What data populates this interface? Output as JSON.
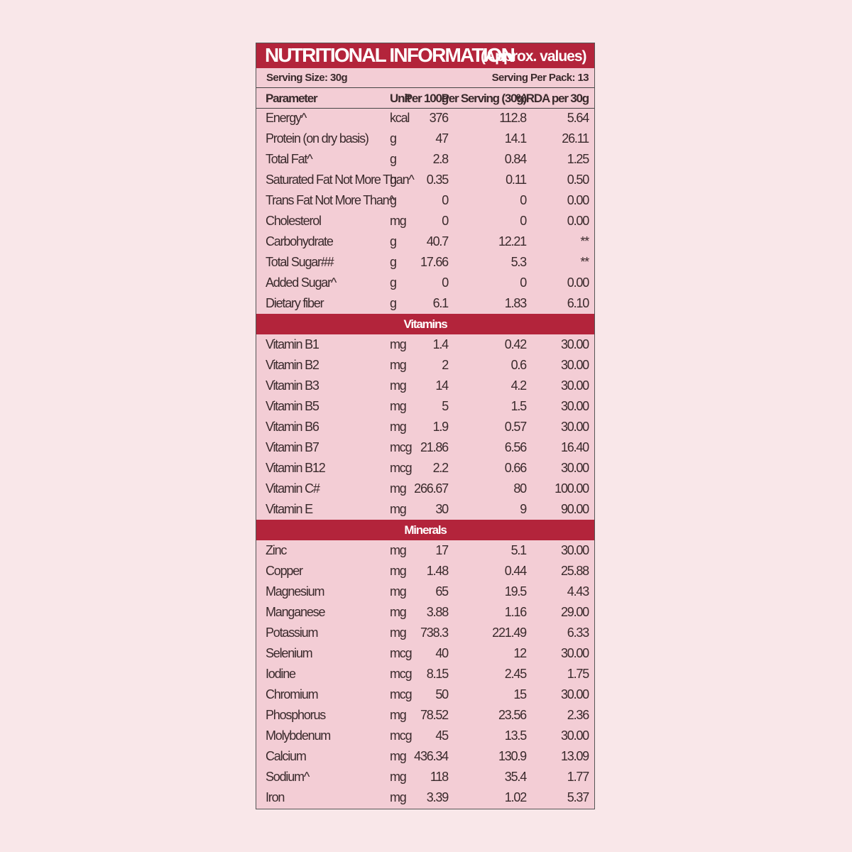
{
  "header": {
    "title": "NUTRITIONAL INFORMATION",
    "subtitle": "(Approx. values)",
    "serving_size": "Serving Size: 30g",
    "servings_per_pack": "Serving Per Pack: 13"
  },
  "table": {
    "columns": [
      "Parameter",
      "Unit",
      "Per 100g",
      "Per Serving (30g)",
      "%RDA per 30g"
    ],
    "nutrients": {
      "rows": [
        [
          "Energy^",
          "kcal",
          "376",
          "112.8",
          "5.64"
        ],
        [
          "Protein (on dry basis)",
          "g",
          "47",
          "14.1",
          "26.11"
        ],
        [
          "Total Fat^",
          "g",
          "2.8",
          "0.84",
          "1.25"
        ],
        [
          "Saturated Fat Not More Than^",
          "g",
          "0.35",
          "0.11",
          "0.50"
        ],
        [
          "Trans Fat Not More Than^",
          "g",
          "0",
          "0",
          "0.00"
        ],
        [
          "Cholesterol",
          "mg",
          "0",
          "0",
          "0.00"
        ],
        [
          "Carbohydrate",
          "g",
          "40.7",
          "12.21",
          "**"
        ],
        [
          "Total Sugar##",
          "g",
          "17.66",
          "5.3",
          "**"
        ],
        [
          "Added Sugar^",
          "g",
          "0",
          "0",
          "0.00"
        ],
        [
          "Dietary fiber",
          "g",
          "6.1",
          "1.83",
          "6.10"
        ]
      ]
    },
    "vitamins": {
      "title": "Vitamins",
      "rows": [
        [
          "Vitamin B1",
          "mg",
          "1.4",
          "0.42",
          "30.00"
        ],
        [
          "Vitamin B2",
          "mg",
          "2",
          "0.6",
          "30.00"
        ],
        [
          "Vitamin B3",
          "mg",
          "14",
          "4.2",
          "30.00"
        ],
        [
          "Vitamin B5",
          "mg",
          "5",
          "1.5",
          "30.00"
        ],
        [
          "Vitamin B6",
          "mg",
          "1.9",
          "0.57",
          "30.00"
        ],
        [
          "Vitamin B7",
          "mcg",
          "21.86",
          "6.56",
          "16.40"
        ],
        [
          "Vitamin B12",
          "mcg",
          "2.2",
          "0.66",
          "30.00"
        ],
        [
          "Vitamin C#",
          "mg",
          "266.67",
          "80",
          "100.00"
        ],
        [
          "Vitamin E",
          "mg",
          "30",
          "9",
          "90.00"
        ]
      ]
    },
    "minerals": {
      "title": "Minerals",
      "rows": [
        [
          "Zinc",
          "mg",
          "17",
          "5.1",
          "30.00"
        ],
        [
          "Copper",
          "mg",
          "1.48",
          "0.44",
          "25.88"
        ],
        [
          "Magnesium",
          "mg",
          "65",
          "19.5",
          "4.43"
        ],
        [
          "Manganese",
          "mg",
          "3.88",
          "1.16",
          "29.00"
        ],
        [
          "Potassium",
          "mg",
          "738.3",
          "221.49",
          "6.33"
        ],
        [
          "Selenium",
          "mcg",
          "40",
          "12",
          "30.00"
        ],
        [
          "Iodine",
          "mcg",
          "8.15",
          "2.45",
          "1.75"
        ],
        [
          "Chromium",
          "mcg",
          "50",
          "15",
          "30.00"
        ],
        [
          "Phosphorus",
          "mg",
          "78.52",
          "23.56",
          "2.36"
        ],
        [
          "Molybdenum",
          "mcg",
          "45",
          "13.5",
          "30.00"
        ],
        [
          "Calcium",
          "mg",
          "436.34",
          "130.9",
          "13.09"
        ],
        [
          "Sodium^",
          "mg",
          "118",
          "35.4",
          "1.77"
        ],
        [
          "Iron",
          "mg",
          "3.39",
          "1.02",
          "5.37"
        ]
      ]
    }
  }
}
